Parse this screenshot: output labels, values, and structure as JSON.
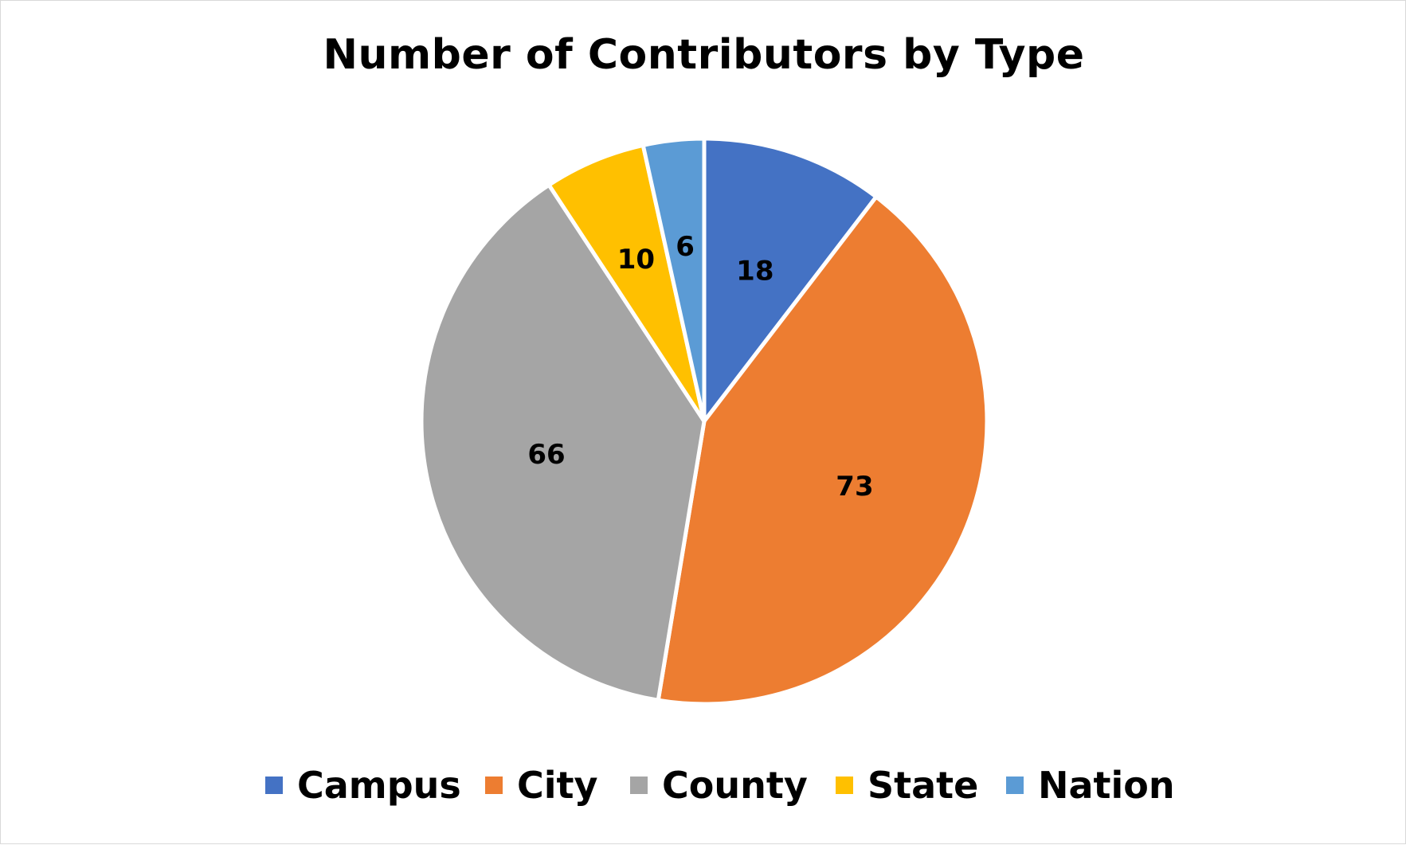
{
  "chart_data": {
    "type": "pie",
    "title": "Number of Contributors by Type",
    "categories": [
      "Campus",
      "City",
      "County",
      "State",
      "Nation"
    ],
    "values": [
      18,
      73,
      66,
      10,
      6
    ],
    "colors": [
      "#4472c4",
      "#ed7d31",
      "#a5a5a5",
      "#ffc000",
      "#5b9bd5"
    ],
    "start_angle": "top, clockwise",
    "legend": "bottom"
  }
}
